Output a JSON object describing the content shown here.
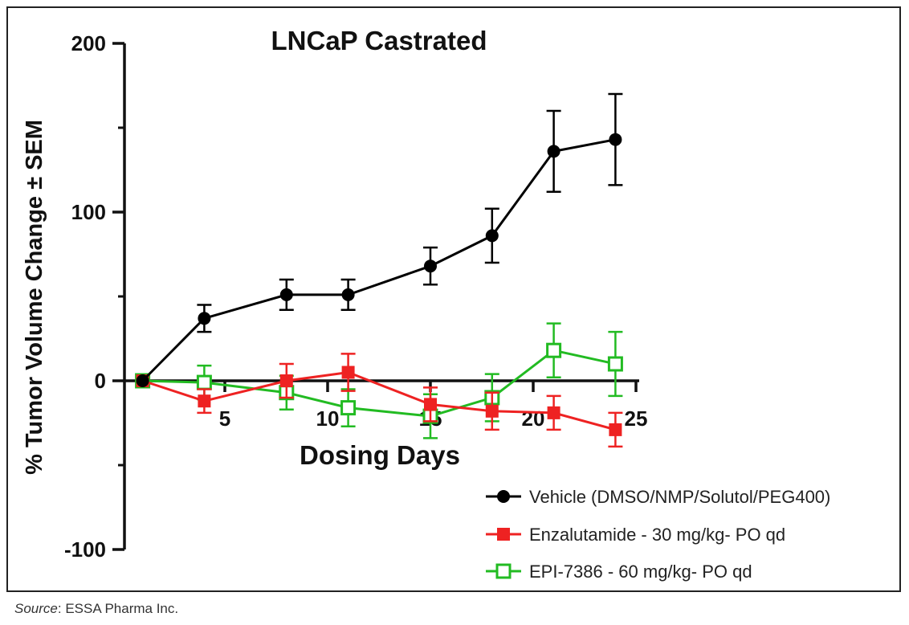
{
  "chart_data": {
    "type": "line",
    "title": "LNCaP Castrated",
    "xlabel": "Dosing Days",
    "ylabel": "% Tumor Volume Change ± SEM",
    "xlim": [
      0,
      25
    ],
    "ylim": [
      -100,
      200
    ],
    "xticks": [
      5,
      10,
      15,
      20,
      25
    ],
    "xtick_labels": [
      "5",
      "10",
      "15",
      "20",
      "25"
    ],
    "yticks": [
      -100,
      0,
      100,
      200
    ],
    "ytick_labels": [
      "-100",
      "0",
      "100",
      "200"
    ],
    "legend_position": "bottom-right",
    "series": [
      {
        "name": "Vehicle (DMSO/NMP/Solutol/PEG400)",
        "color": "#000000",
        "marker": "filled-circle",
        "x": [
          1,
          4,
          8,
          11,
          15,
          18,
          21,
          24
        ],
        "values": [
          0,
          37,
          51,
          51,
          68,
          86,
          136,
          143
        ],
        "err": [
          0,
          8,
          9,
          9,
          11,
          16,
          24,
          27
        ]
      },
      {
        "name": "Enzalutamide - 30 mg/kg- PO qd",
        "color": "#ee2222",
        "marker": "filled-square",
        "x": [
          1,
          4,
          8,
          11,
          15,
          18,
          21,
          24
        ],
        "values": [
          0,
          -12,
          0,
          5,
          -14,
          -18,
          -19,
          -29
        ],
        "err": [
          0,
          7,
          10,
          11,
          10,
          11,
          10,
          10
        ]
      },
      {
        "name": "EPI-7386 - 60 mg/kg- PO qd",
        "color": "#22bb22",
        "marker": "open-square",
        "x": [
          1,
          4,
          8,
          11,
          15,
          18,
          21,
          24
        ],
        "values": [
          0,
          -1,
          -7,
          -16,
          -21,
          -10,
          18,
          10
        ],
        "err": [
          0,
          10,
          10,
          11,
          13,
          14,
          16,
          19
        ]
      }
    ]
  },
  "source": {
    "label": "Source",
    "text": ": ESSA Pharma Inc."
  }
}
